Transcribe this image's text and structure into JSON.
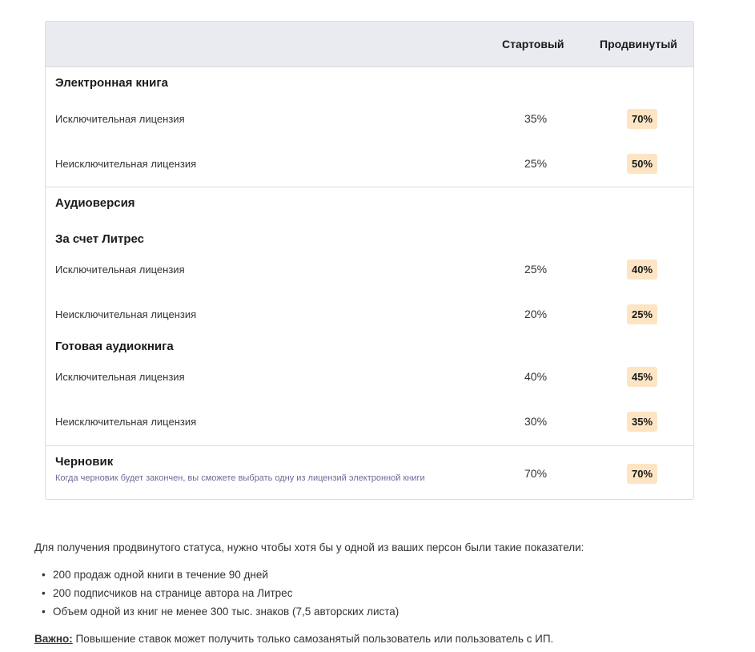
{
  "table": {
    "headers": {
      "starter": "Стартовый",
      "advanced": "Продвинутый"
    },
    "ebook": {
      "title": "Электронная книга",
      "rows": [
        {
          "label": "Исключительная лицензия",
          "starter": "35%",
          "advanced": "70%"
        },
        {
          "label": "Неисключительная лицензия",
          "starter": "25%",
          "advanced": "50%"
        }
      ]
    },
    "audio": {
      "title": "Аудиоверсия",
      "litres": {
        "title": "За счет Литрес",
        "rows": [
          {
            "label": "Исключительная лицензия",
            "starter": "25%",
            "advanced": "40%"
          },
          {
            "label": "Неисключительная лицензия",
            "starter": "20%",
            "advanced": "25%"
          }
        ]
      },
      "ready": {
        "title": "Готовая аудиокнига",
        "rows": [
          {
            "label": "Исключительная лицензия",
            "starter": "40%",
            "advanced": "45%"
          },
          {
            "label": "Неисключительная лицензия",
            "starter": "30%",
            "advanced": "35%"
          }
        ]
      }
    },
    "draft": {
      "title": "Черновик",
      "note": "Когда черновик будет закончен, вы сможете выбрать одну из лицензий электронной книги",
      "starter": "70%",
      "advanced": "70%"
    }
  },
  "info": {
    "intro": "Для получения продвинутого статуса, нужно чтобы хотя бы у одной из ваших персон были такие показатели:",
    "bullets": [
      "200 продаж одной книги в течение 90 дней",
      "200 подписчиков на странице автора на Литрес",
      "Объем одной из книг не менее 300 тыс. знаков (7,5 авторских листа)"
    ],
    "important_label": "Важно:",
    "important_text": " Повышение ставок может получить только самозанятый пользователь или пользователь с ИП."
  },
  "colors": {
    "header_bg": "#e9ebf0",
    "badge_bg": "#fde5c4",
    "note_text": "#6b6b9a"
  }
}
